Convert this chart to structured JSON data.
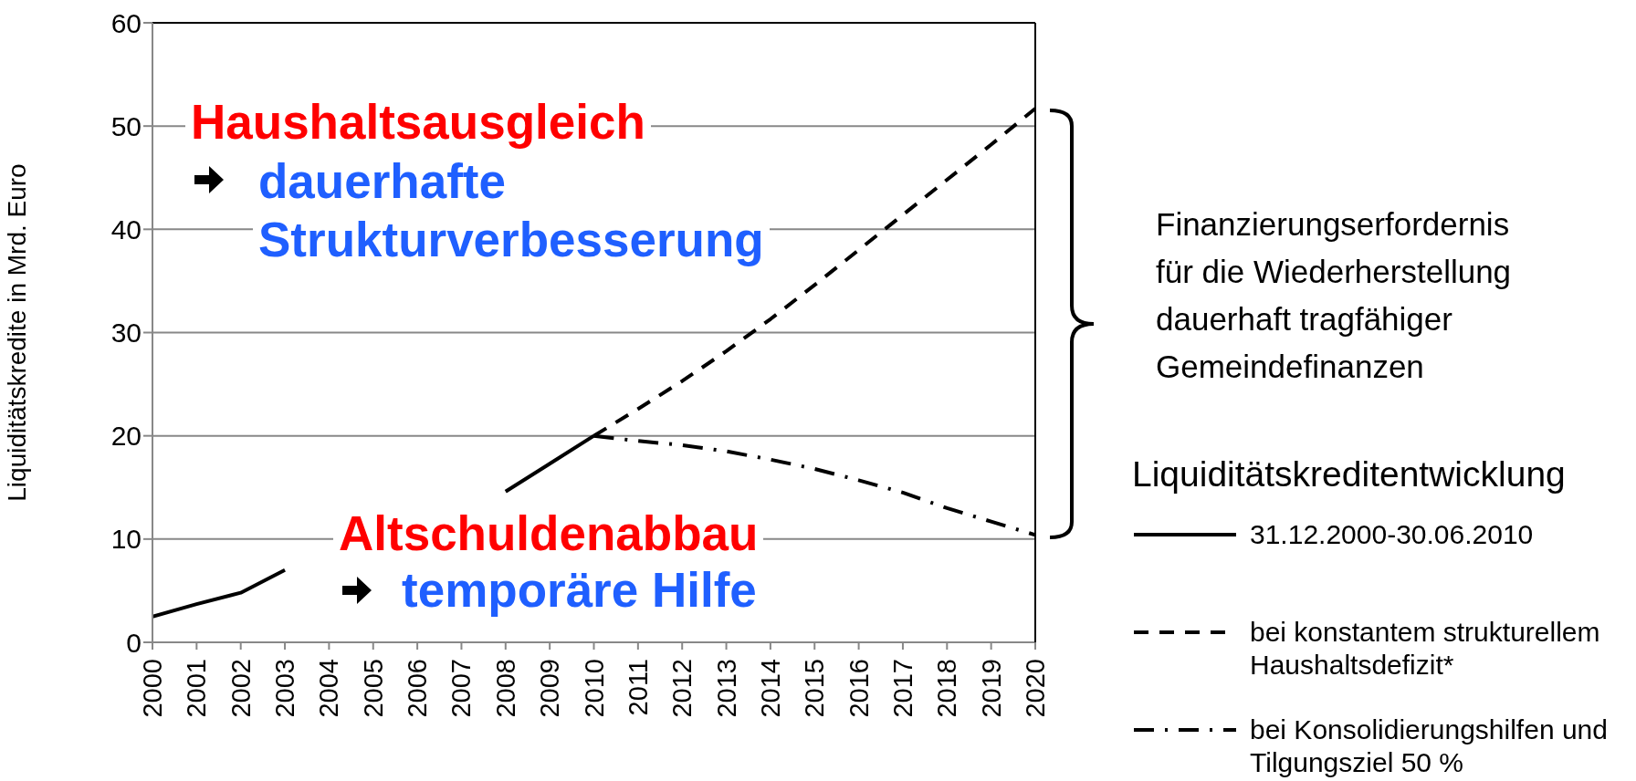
{
  "chart_data": {
    "type": "line",
    "ylabel": "Liquiditätskredite  in Mrd. Euro",
    "legend_title": "Liquiditätskreditentwicklung",
    "categories": [
      "2000",
      "2001",
      "2002",
      "2003",
      "2004",
      "2005",
      "2006",
      "2007",
      "2008",
      "2009",
      "2010",
      "2011",
      "2012",
      "2013",
      "2014",
      "2015",
      "2016",
      "2017",
      "2018",
      "2019",
      "2020"
    ],
    "series": [
      {
        "name": "31.12.2000-30.06.2010",
        "color": "#000000",
        "line_style": "solid",
        "values": [
          2.5,
          3.7,
          4.8,
          7.0,
          null,
          null,
          null,
          null,
          14.6,
          17.3,
          20.0,
          null,
          null,
          null,
          null,
          null,
          null,
          null,
          null,
          null,
          null
        ]
      },
      {
        "name": "bei konstantem strukturellem Haushaltsdefizit*",
        "color": "#000000",
        "line_style": "dashed",
        "values": [
          null,
          null,
          null,
          null,
          null,
          null,
          null,
          null,
          null,
          null,
          20.0,
          22.6,
          25.3,
          28.2,
          31.3,
          34.6,
          38.0,
          41.4,
          44.8,
          48.2,
          51.7
        ]
      },
      {
        "name": "bei Konsolidierungshilfen und Tilgungsziel 50 %",
        "color": "#000000",
        "line_style": "dashdot",
        "values": [
          null,
          null,
          null,
          null,
          null,
          null,
          null,
          null,
          null,
          null,
          20.0,
          19.5,
          19.1,
          18.5,
          17.7,
          16.8,
          15.7,
          14.5,
          13.0,
          11.7,
          10.4
        ]
      }
    ],
    "ylim": [
      0,
      60
    ],
    "yticks": [
      0,
      10,
      20,
      30,
      40,
      50,
      60
    ],
    "grid": "y",
    "legend": "right",
    "marker": "none",
    "annotations": [
      "Haushaltsausgleich",
      "dauerhafte\nStrukturverbesserung",
      "Altschuldenabbau",
      "temporäre Hilfe",
      "Finanzierungserfordernis\nfür die Wiederherstellung\ndauerhaft tragfähiger\nGemeindefinanzen"
    ]
  }
}
